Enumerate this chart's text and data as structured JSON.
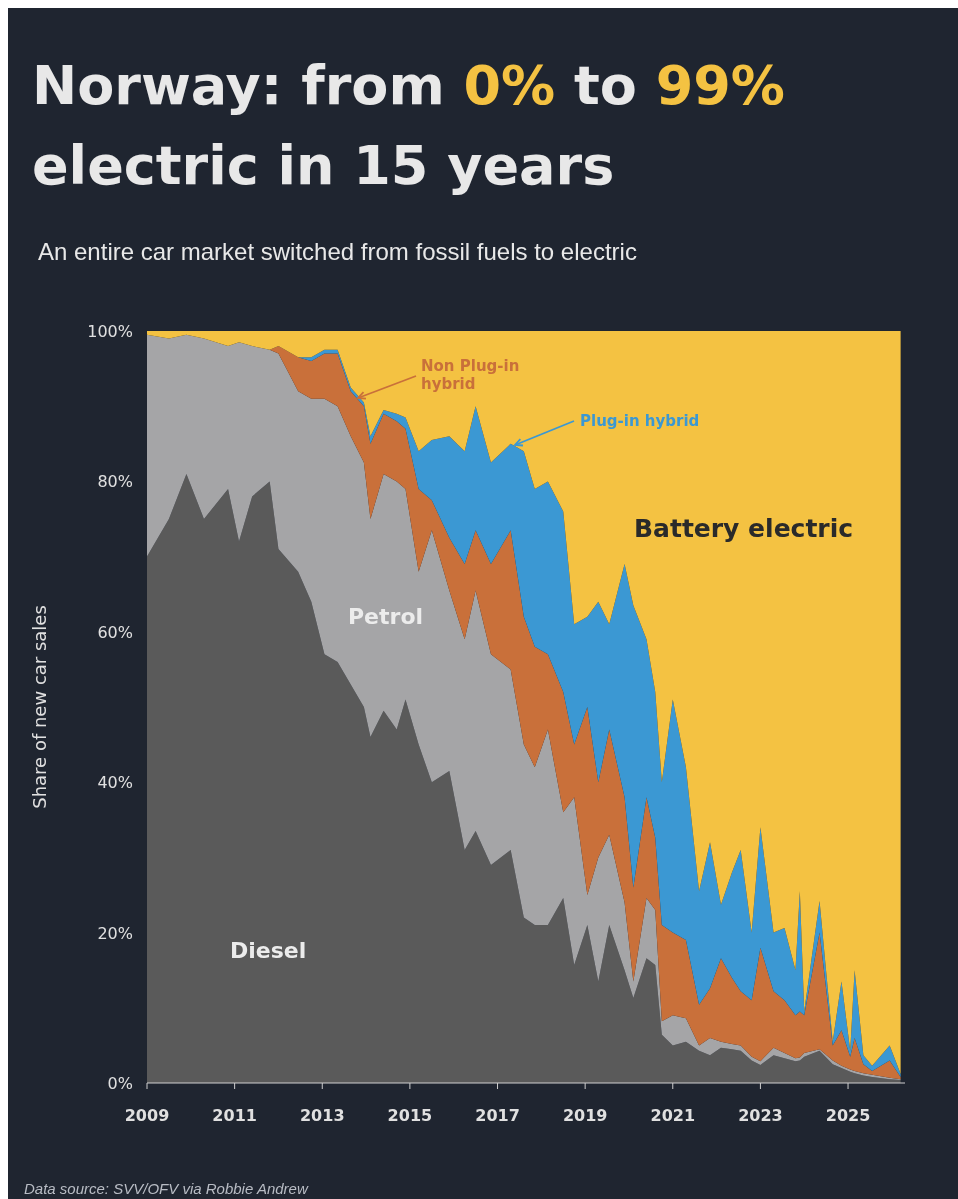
{
  "chart_data": {
    "type": "area",
    "stacked": true,
    "title": "Norway: from 0% to 99% electric in 15 years",
    "subtitle": "An entire car market switched from fossil fuels to electric",
    "ylabel": "Share of new car sales",
    "x": [
      2009.0,
      2009.5,
      2009.9,
      2010.3,
      2010.85,
      2011.1,
      2011.4,
      2011.8,
      2012.0,
      2012.45,
      2012.75,
      2013.05,
      2013.35,
      2013.65,
      2013.95,
      2014.1,
      2014.4,
      2014.7,
      2014.9,
      2015.2,
      2015.5,
      2015.9,
      2016.25,
      2016.5,
      2016.85,
      2017.3,
      2017.6,
      2017.85,
      2018.15,
      2018.5,
      2018.75,
      2019.05,
      2019.3,
      2019.55,
      2019.9,
      2020.1,
      2020.4,
      2020.6,
      2020.75,
      2021.0,
      2021.3,
      2021.6,
      2021.85,
      2022.1,
      2022.35,
      2022.55,
      2022.8,
      2023.0,
      2023.3,
      2023.55,
      2023.8,
      2023.9,
      2024.0,
      2024.35,
      2024.65,
      2024.85,
      2025.05,
      2025.15,
      2025.35,
      2025.55,
      2025.95,
      2026.2
    ],
    "series": [
      {
        "name": "Diesel",
        "color": "#5a5a5a",
        "values": [
          70,
          75,
          81,
          75,
          79,
          72,
          78,
          80,
          71,
          68,
          64,
          57,
          56,
          53,
          50,
          46,
          49.5,
          47,
          51,
          45,
          40,
          41.5,
          31,
          33.5,
          29,
          31,
          22,
          21,
          21,
          24.6,
          15.7,
          21,
          13.5,
          21,
          15,
          11.3,
          16.6,
          15.7,
          6.4,
          5,
          5.5,
          4.3,
          3.7,
          4.7,
          4.5,
          4.3,
          3,
          2.4,
          3.7,
          3.3,
          2.9,
          3,
          3.5,
          4.3,
          2.5,
          2,
          1.5,
          1.3,
          1,
          0.8,
          0.5,
          0.4
        ]
      },
      {
        "name": "Petrol",
        "color": "#a5a5a7",
        "values": [
          29.5,
          24,
          18.5,
          24,
          19,
          26.5,
          20,
          17.5,
          26,
          24,
          27,
          34,
          34,
          33,
          32.5,
          29,
          31.5,
          33,
          28,
          23,
          33.5,
          24,
          28,
          32,
          28,
          24,
          23,
          21,
          26,
          11.4,
          22.3,
          4,
          16.5,
          12,
          9,
          2.2,
          8,
          7.3,
          1.8,
          4,
          3.1,
          0.7,
          2.3,
          0.8,
          0.7,
          0.7,
          0.5,
          0.5,
          1,
          0.7,
          0.4,
          0.4,
          0.5,
          0.2,
          0.5,
          0.3,
          0.3,
          0.3,
          0.3,
          0.3,
          0.2,
          0.1
        ]
      },
      {
        "name": "Non Plug-in hybrid",
        "color": "#c9703a",
        "values": [
          null,
          null,
          null,
          null,
          null,
          null,
          null,
          0,
          1,
          4.5,
          5,
          6,
          7,
          6,
          7.5,
          10,
          8,
          8,
          8,
          11,
          4,
          7,
          10,
          8,
          12,
          18.5,
          17,
          16,
          10,
          16,
          7,
          25,
          10,
          14,
          14,
          12.5,
          13.4,
          9.6,
          12.8,
          11,
          10.4,
          5.4,
          6.6,
          11.1,
          8.8,
          7.2,
          7.5,
          15.1,
          7.5,
          7,
          5.7,
          6.1,
          5,
          15.5,
          2,
          4.7,
          1.7,
          4.4,
          1.2,
          0.5,
          2.3,
          0.3
        ]
      },
      {
        "name": "Plug-in hybrid",
        "color": "#3b98d3",
        "values": [
          null,
          null,
          null,
          null,
          null,
          null,
          null,
          null,
          null,
          0,
          0.5,
          0.5,
          0.5,
          0.5,
          0.5,
          1,
          0.5,
          1,
          1.5,
          5,
          8,
          13.5,
          15,
          16.5,
          13.5,
          11.5,
          22,
          21,
          23,
          24,
          16,
          12,
          24,
          14,
          31,
          37.5,
          21,
          19.4,
          19,
          31,
          23,
          15.1,
          19.4,
          7.1,
          14,
          18.8,
          9,
          16,
          7.8,
          9.6,
          6,
          16,
          0.5,
          4.2,
          0.5,
          6.5,
          0.8,
          9,
          1.2,
          0.7,
          2,
          0.4
        ]
      },
      {
        "name": "Battery electric",
        "color": "#f4c242",
        "values": [
          0.5,
          1,
          0.5,
          1,
          2,
          1.5,
          2,
          2.5,
          2,
          3.5,
          3.5,
          2.5,
          2.5,
          7.5,
          9.5,
          14,
          10.5,
          11,
          11.5,
          16,
          14.5,
          14,
          16,
          10,
          17.5,
          15,
          16,
          21,
          20,
          24,
          39,
          38,
          36,
          39,
          31,
          36.5,
          41,
          48,
          60,
          49,
          58,
          74.5,
          68,
          76.3,
          72,
          69,
          80,
          66,
          80,
          79.4,
          85,
          74.5,
          90.5,
          75.8,
          94.5,
          86.5,
          95.7,
          85,
          96.3,
          97.7,
          95,
          98.8
        ]
      }
    ],
    "xlim": [
      2009,
      2026.3
    ],
    "xticks": [
      2009,
      2011,
      2013,
      2015,
      2017,
      2019,
      2021,
      2023,
      2025
    ],
    "ylim": [
      0,
      100
    ],
    "yticks": [
      {
        "value": 0,
        "label": "0%"
      },
      {
        "value": 20,
        "label": "20%"
      },
      {
        "value": 40,
        "label": "40%"
      },
      {
        "value": 60,
        "label": "60%"
      },
      {
        "value": 80,
        "label": "80%"
      },
      {
        "value": 100,
        "label": "100%"
      }
    ],
    "grid": false,
    "legend": false,
    "annotations": [
      "Data source: SVV/OFV via Robbie Andrew"
    ]
  }
}
